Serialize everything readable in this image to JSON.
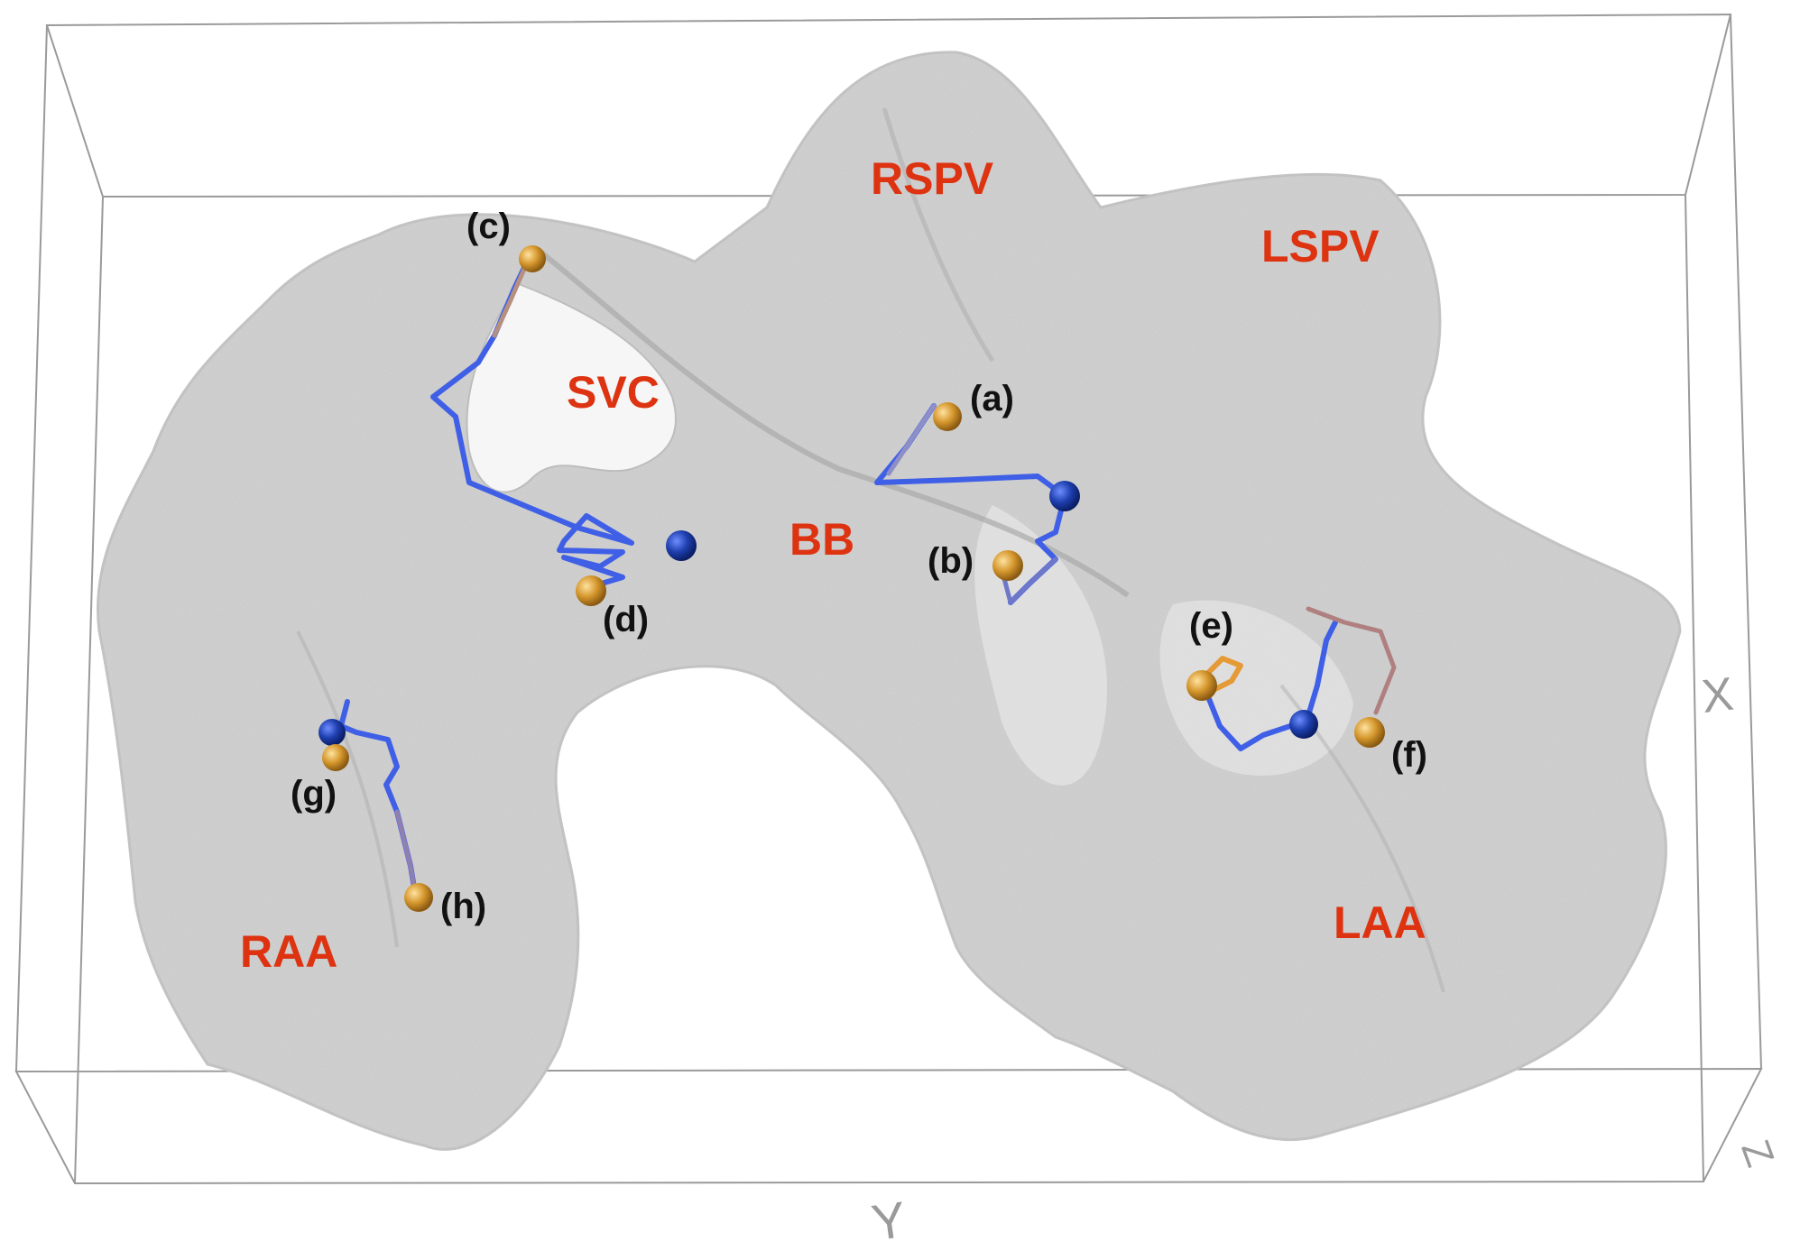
{
  "regions": {
    "rspv": "RSPV",
    "lspv": "LSPV",
    "svc": "SVC",
    "bb": "BB",
    "raa": "RAA",
    "laa": "LAA"
  },
  "markers": {
    "a": "(a)",
    "b": "(b)",
    "c": "(c)",
    "d": "(d)",
    "e": "(e)",
    "f": "(f)",
    "g": "(g)",
    "h": "(h)"
  },
  "axes": {
    "y": "Y",
    "x": "X",
    "z": "Z"
  },
  "colors": {
    "region_label": "#dd3311",
    "marker_label": "#111111",
    "surface": "#d2d2d2",
    "path_blue": "#3f5fe6",
    "start_sphere": "#1d3fb0",
    "end_sphere": "#c98a22",
    "bounding_box": "#9a9a9a"
  }
}
